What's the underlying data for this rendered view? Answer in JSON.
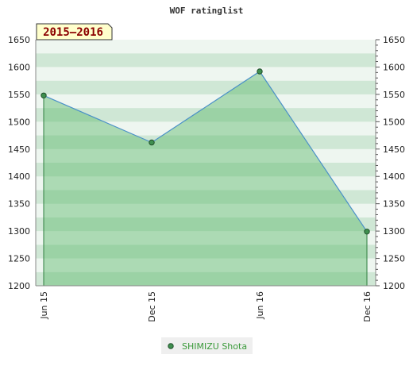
{
  "chart_data": {
    "type": "area",
    "title": "WOF ratinglist",
    "badge": "2015–2016",
    "categories": [
      "Jun 15",
      "Dec 15",
      "Jun 16",
      "Dec 16"
    ],
    "series": [
      {
        "name": "SHIMIZU Shota",
        "values": [
          1548,
          1462,
          1592,
          1299
        ]
      }
    ],
    "xlabel": "",
    "ylabel": "",
    "ylim": [
      1200,
      1650
    ],
    "yticks": [
      1200,
      1250,
      1300,
      1350,
      1400,
      1450,
      1500,
      1550,
      1600,
      1650
    ],
    "yaxis": "left and right",
    "grid": "horizontal bands",
    "legend_position": "bottom-center",
    "colors": {
      "line": "#4a90c8",
      "fill": "#5cb86a",
      "marker": "#3f8f4f",
      "band_dark": "#cfe7d5",
      "band_light": "#eef6f0",
      "badge_bg": "#ffffcc",
      "badge_text": "#8b0000",
      "legend_text": "#3a9a3a"
    }
  }
}
